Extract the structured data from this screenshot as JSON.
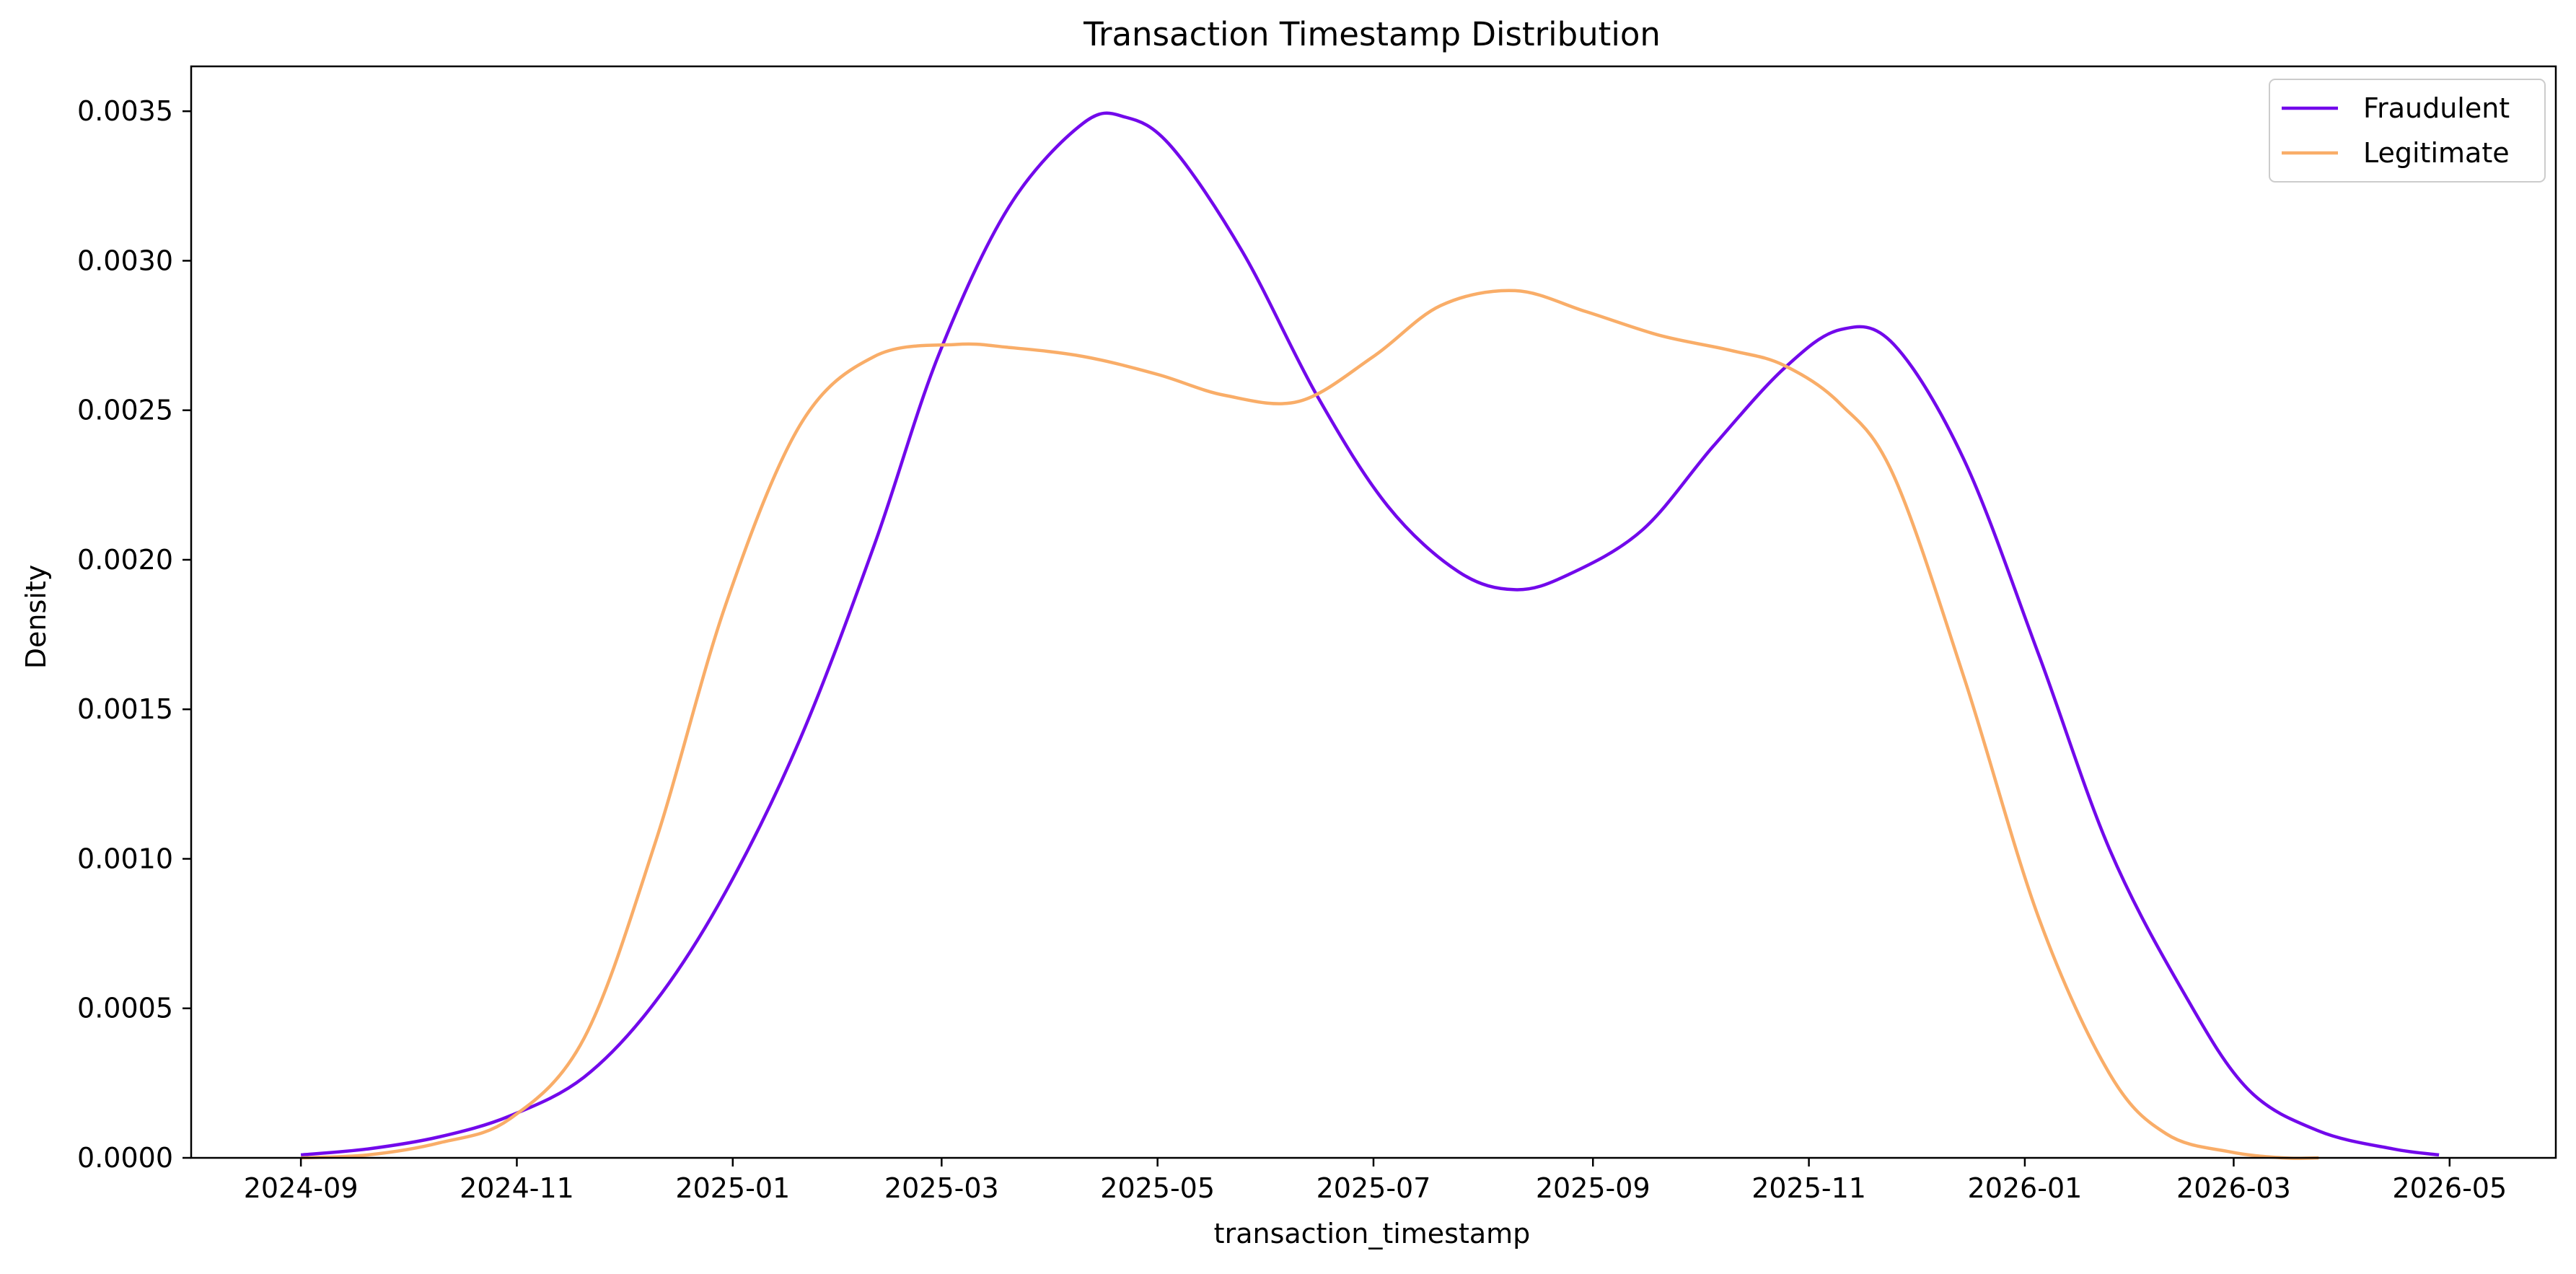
{
  "chart_data": {
    "type": "line",
    "title": "Transaction Timestamp Distribution",
    "xlabel": "transaction_timestamp",
    "ylabel": "Density",
    "x_tick_labels": [
      "2024-09",
      "2024-11",
      "2025-01",
      "2025-03",
      "2025-05",
      "2025-07",
      "2025-09",
      "2025-11",
      "2026-01",
      "2026-03",
      "2026-05"
    ],
    "y_tick_labels": [
      "0.0000",
      "0.0005",
      "0.0010",
      "0.0015",
      "0.0020",
      "0.0025",
      "0.0030",
      "0.0035"
    ],
    "xlim": [
      "2024-08-01",
      "2026-05-31"
    ],
    "ylim": [
      0,
      0.00365
    ],
    "grid": false,
    "legend_position": "top-right",
    "series": [
      {
        "name": "Fraudulent",
        "color": "#7209eb",
        "x": [
          "2024-09-01",
          "2024-09-20",
          "2024-10-10",
          "2024-10-30",
          "2024-11-20",
          "2024-12-10",
          "2024-12-30",
          "2025-01-20",
          "2025-02-10",
          "2025-02-28",
          "2025-03-20",
          "2025-04-10",
          "2025-04-22",
          "2025-05-05",
          "2025-05-25",
          "2025-06-15",
          "2025-07-05",
          "2025-07-25",
          "2025-08-10",
          "2025-08-25",
          "2025-09-15",
          "2025-10-05",
          "2025-10-25",
          "2025-11-10",
          "2025-11-25",
          "2025-12-15",
          "2026-01-05",
          "2026-01-25",
          "2026-02-15",
          "2026-03-05",
          "2026-03-25",
          "2026-04-15",
          "2026-04-28"
        ],
        "y": [
          1e-05,
          3e-05,
          7e-05,
          0.00014,
          0.00027,
          0.00052,
          0.00089,
          0.0014,
          0.00205,
          0.00268,
          0.00318,
          0.00346,
          0.00348,
          0.00338,
          0.00303,
          0.00255,
          0.00218,
          0.00196,
          0.0019,
          0.00195,
          0.0021,
          0.00238,
          0.00264,
          0.00277,
          0.00272,
          0.00233,
          0.00168,
          0.00103,
          0.00055,
          0.00023,
          9e-05,
          3e-05,
          1e-05
        ]
      },
      {
        "name": "Legitimate",
        "color": "#f9ad68",
        "x": [
          "2024-09-01",
          "2024-09-20",
          "2024-10-10",
          "2024-10-30",
          "2024-11-20",
          "2024-12-10",
          "2024-12-30",
          "2025-01-20",
          "2025-02-10",
          "2025-03-05",
          "2025-03-20",
          "2025-04-10",
          "2025-05-01",
          "2025-05-20",
          "2025-06-10",
          "2025-07-01",
          "2025-07-20",
          "2025-08-10",
          "2025-08-30",
          "2025-09-20",
          "2025-10-10",
          "2025-10-25",
          "2025-11-10",
          "2025-11-25",
          "2025-12-15",
          "2026-01-05",
          "2026-01-25",
          "2026-02-10",
          "2026-02-28",
          "2026-03-15",
          "2026-03-25"
        ],
        "y": [
          0.0,
          1e-05,
          5e-05,
          0.00013,
          0.0004,
          0.00105,
          0.00185,
          0.00245,
          0.00268,
          0.00272,
          0.00271,
          0.00268,
          0.00262,
          0.00255,
          0.00253,
          0.00268,
          0.00285,
          0.0029,
          0.00283,
          0.00275,
          0.0027,
          0.00265,
          0.00252,
          0.00228,
          0.0016,
          0.0008,
          0.00028,
          8e-05,
          2e-05,
          0.0,
          0.0
        ]
      }
    ]
  }
}
